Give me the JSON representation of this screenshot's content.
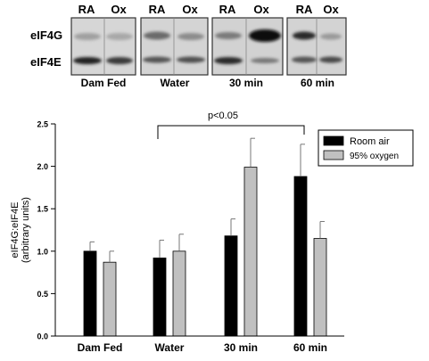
{
  "blot": {
    "lane_headers": [
      "RA",
      "Ox",
      "RA",
      "Ox",
      "RA",
      "Ox",
      "RA",
      "Ox"
    ],
    "row_labels": [
      "eIF4G",
      "eIF4E"
    ],
    "groups": [
      "Dam Fed",
      "Water",
      "30 min",
      "60 min"
    ]
  },
  "chart_data": {
    "type": "bar",
    "ylabel": "eIF4G:eIF4E (arbitrary units)",
    "ylabel_lines": [
      "eIF4G:eIF4E",
      "(arbitrary units)"
    ],
    "categories": [
      "Dam Fed",
      "Water",
      "30 min",
      "60 min"
    ],
    "ylim": [
      0,
      2.5
    ],
    "yticks": [
      "0.0",
      "0.5",
      "1.0",
      "1.5",
      "2.0",
      "2.5"
    ],
    "series": [
      {
        "name": "Room air",
        "color": "#000000",
        "values": [
          1.0,
          0.92,
          1.18,
          1.88
        ],
        "errors": [
          0.11,
          0.21,
          0.2,
          0.38
        ]
      },
      {
        "name": "95% oxygen",
        "color": "#c0c0c0",
        "values": [
          0.87,
          1.0,
          1.99,
          1.15
        ],
        "errors": [
          0.13,
          0.2,
          0.34,
          0.2
        ]
      }
    ],
    "annotation": "p<0.05",
    "legend_position": "top-right",
    "grid": false
  }
}
